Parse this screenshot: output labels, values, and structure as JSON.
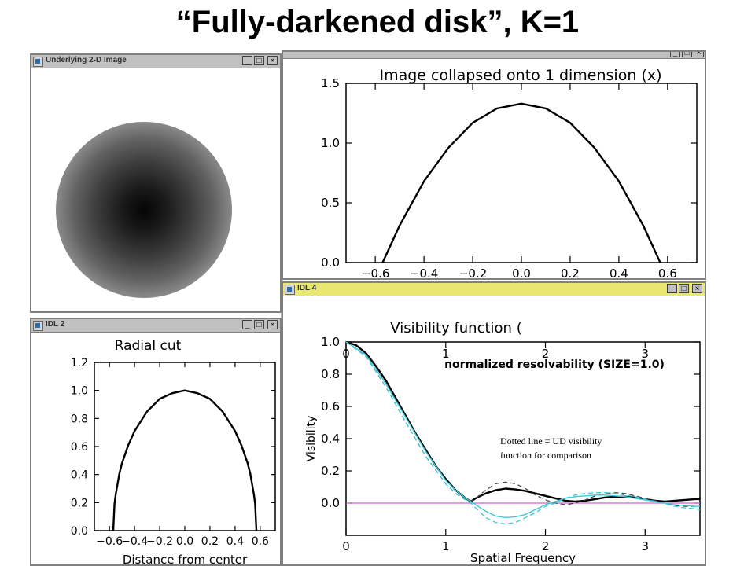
{
  "slide": {
    "title": "“Fully-darkened disk”, K=1"
  },
  "windows": {
    "image2d": {
      "title": "Underlying 2-D Image",
      "buttons": [
        "_",
        "□",
        "×"
      ]
    },
    "collapsed": {
      "title": "",
      "buttons": [
        "_",
        "□",
        "×"
      ]
    },
    "radial": {
      "title": "IDL 2",
      "buttons": [
        "_",
        "□",
        "×"
      ]
    },
    "visibility": {
      "title": "IDL 4",
      "buttons": [
        "_",
        "□",
        "×"
      ]
    }
  },
  "colors": {
    "window_chrome": "#c0c0c0",
    "curve": "#000000",
    "ud_dashed": "#444444",
    "cyan": "#3ec8d8",
    "zero_line": "#d060d0"
  },
  "annotation": {
    "line1": "Dotted line = UD visibility",
    "line2": "function for comparison"
  },
  "chart_data": [
    {
      "type": "line",
      "title": "Image collapsed onto 1 dimension (x)",
      "xlabel": "",
      "ylabel": "",
      "xlim": [
        -0.72,
        0.72
      ],
      "ylim": [
        0,
        1.5
      ],
      "x_ticks": [
        "−0.6",
        "−0.4",
        "−0.2",
        "0.0",
        "0.2",
        "0.4",
        "0.6"
      ],
      "x_tick_values": [
        -0.6,
        -0.4,
        -0.2,
        0.0,
        0.2,
        0.4,
        0.6
      ],
      "y_ticks": [
        "0.0",
        "0.5",
        "1.0",
        "1.5"
      ],
      "y_tick_values": [
        0,
        0.5,
        1.0,
        1.5
      ],
      "series": [
        {
          "x": [
            -0.57,
            -0.5,
            -0.4,
            -0.3,
            -0.2,
            -0.1,
            0,
            0.1,
            0.2,
            0.3,
            0.4,
            0.5,
            0.57
          ],
          "y": [
            0,
            0.31,
            0.68,
            0.96,
            1.17,
            1.29,
            1.33,
            1.29,
            1.17,
            0.96,
            0.68,
            0.31,
            0
          ]
        }
      ]
    },
    {
      "type": "line",
      "title": "Radial cut",
      "xlabel": "Distance from center",
      "ylabel": "",
      "xlim": [
        -0.72,
        0.72
      ],
      "ylim": [
        0,
        1.2
      ],
      "x_ticks": [
        "−0.6",
        "−0.4",
        "−0.2",
        "0.0",
        "0.2",
        "0.4",
        "0.6"
      ],
      "x_tick_values": [
        -0.6,
        -0.4,
        -0.2,
        0.0,
        0.2,
        0.4,
        0.6
      ],
      "y_ticks": [
        "0.0",
        "0.2",
        "0.4",
        "0.6",
        "0.8",
        "1.0",
        "1.2"
      ],
      "y_tick_values": [
        0,
        0.2,
        0.4,
        0.6,
        0.8,
        1.0,
        1.2
      ],
      "series": [
        {
          "x": [
            -0.57,
            -0.56,
            -0.55,
            -0.52,
            -0.5,
            -0.45,
            -0.4,
            -0.3,
            -0.2,
            -0.1,
            0,
            0.1,
            0.2,
            0.3,
            0.4,
            0.45,
            0.5,
            0.52,
            0.55,
            0.56,
            0.57
          ],
          "y": [
            0,
            0.19,
            0.26,
            0.41,
            0.48,
            0.61,
            0.71,
            0.85,
            0.94,
            0.98,
            1.0,
            0.98,
            0.94,
            0.85,
            0.71,
            0.61,
            0.48,
            0.41,
            0.26,
            0.19,
            0
          ]
        }
      ]
    },
    {
      "type": "line",
      "title": "Visibility function (",
      "subtitle": "normalized resolvability (SIZE=1.0)",
      "xlabel": "Spatial Frequency",
      "ylabel": "Visibility",
      "xlim": [
        0,
        3.55
      ],
      "ylim": [
        -0.2,
        1.0
      ],
      "x_ticks": [
        "0",
        "1",
        "2",
        "3"
      ],
      "x_tick_values": [
        0,
        1,
        2,
        3
      ],
      "y_ticks": [
        "0.0",
        "0.2",
        "0.4",
        "0.6",
        "0.8",
        "1.0"
      ],
      "y_tick_values": [
        0,
        0.2,
        0.4,
        0.6,
        0.8,
        1.0
      ],
      "series": [
        {
          "name": "",
          "style": "solid-black",
          "x": [
            0,
            0.1,
            0.2,
            0.3,
            0.4,
            0.5,
            0.6,
            0.7,
            0.8,
            0.9,
            1.0,
            1.1,
            1.2,
            1.25,
            1.3,
            1.4,
            1.5,
            1.6,
            1.7,
            1.8,
            1.9,
            2.0,
            2.1,
            2.2,
            2.3,
            2.4,
            2.5,
            2.6,
            2.7,
            2.8,
            2.9,
            3.0,
            3.1,
            3.2,
            3.3,
            3.4,
            3.5,
            3.55
          ],
          "y": [
            1.0,
            0.98,
            0.93,
            0.85,
            0.76,
            0.65,
            0.54,
            0.43,
            0.33,
            0.23,
            0.15,
            0.08,
            0.03,
            0.01,
            0.03,
            0.06,
            0.08,
            0.09,
            0.085,
            0.075,
            0.06,
            0.045,
            0.03,
            0.015,
            0.01,
            0.015,
            0.025,
            0.035,
            0.04,
            0.04,
            0.035,
            0.025,
            0.015,
            0.01,
            0.015,
            0.02,
            0.025,
            0.025
          ]
        },
        {
          "name": "",
          "style": "dashed-black",
          "x": [
            0,
            0.2,
            0.4,
            0.6,
            0.8,
            1.0,
            1.1,
            1.2,
            1.25,
            1.3,
            1.4,
            1.5,
            1.6,
            1.7,
            1.8,
            1.9,
            2.0,
            2.1,
            2.2,
            2.3,
            2.4,
            2.5,
            2.6,
            2.7,
            2.8,
            2.9,
            3.0,
            3.1,
            3.2,
            3.3,
            3.4,
            3.5
          ],
          "y": [
            1.0,
            0.91,
            0.72,
            0.5,
            0.29,
            0.12,
            0.06,
            0.02,
            0.01,
            0.03,
            0.08,
            0.12,
            0.13,
            0.12,
            0.09,
            0.05,
            0.02,
            0.0,
            -0.01,
            0.0,
            0.02,
            0.045,
            0.06,
            0.065,
            0.06,
            0.045,
            0.03,
            0.015,
            0.0,
            -0.015,
            -0.02,
            -0.02
          ]
        },
        {
          "name": "",
          "style": "solid-cyan",
          "x": [
            0,
            0.2,
            0.4,
            0.6,
            0.8,
            1.0,
            1.1,
            1.2,
            1.25,
            1.3,
            1.4,
            1.5,
            1.6,
            1.7,
            1.8,
            1.9,
            2.0,
            2.1,
            2.2,
            2.3,
            2.4,
            2.5,
            2.6,
            2.7,
            2.8,
            2.9,
            3.0,
            3.1,
            3.2,
            3.3,
            3.4,
            3.5,
            3.55
          ],
          "y": [
            1.0,
            0.92,
            0.74,
            0.53,
            0.32,
            0.14,
            0.08,
            0.03,
            0.01,
            -0.01,
            -0.05,
            -0.08,
            -0.09,
            -0.085,
            -0.07,
            -0.04,
            -0.01,
            0.01,
            0.03,
            0.04,
            0.045,
            0.05,
            0.05,
            0.045,
            0.04,
            0.03,
            0.02,
            0.01,
            0.0,
            -0.01,
            -0.015,
            -0.02,
            -0.02
          ]
        },
        {
          "name": "",
          "style": "dashed-cyan",
          "x": [
            0,
            0.2,
            0.4,
            0.6,
            0.8,
            1.0,
            1.1,
            1.2,
            1.25,
            1.3,
            1.4,
            1.5,
            1.6,
            1.7,
            1.8,
            1.9,
            2.0,
            2.1,
            2.2,
            2.3,
            2.4,
            2.5,
            2.6,
            2.7,
            2.8,
            2.9,
            3.0,
            3.1,
            3.2,
            3.3,
            3.4,
            3.5,
            3.55
          ],
          "y": [
            1.0,
            0.91,
            0.72,
            0.5,
            0.29,
            0.12,
            0.06,
            0.02,
            0.0,
            -0.03,
            -0.09,
            -0.12,
            -0.13,
            -0.12,
            -0.09,
            -0.06,
            -0.02,
            0.0,
            0.03,
            0.05,
            0.06,
            0.065,
            0.065,
            0.06,
            0.05,
            0.04,
            0.025,
            0.01,
            -0.005,
            -0.02,
            -0.03,
            -0.035,
            -0.04
          ]
        }
      ],
      "reference_line_y": 0.0
    }
  ]
}
